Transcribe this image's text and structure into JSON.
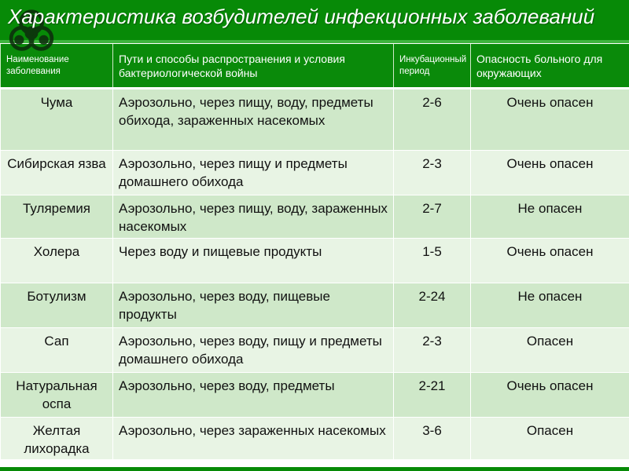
{
  "title": "Характеристика возбудителей инфекционных заболеваний",
  "icon": "biohazard-icon",
  "colors": {
    "header_green": "#0a8a0a",
    "row_odd": "#cfe8c9",
    "row_even": "#e8f4e4"
  },
  "table": {
    "headers": [
      "Наименование заболевания",
      "Пути и способы распространения и условия бактериологической войны",
      "Инкубационный период",
      "Опасность больного для окружающих"
    ],
    "rows": [
      {
        "name": "Чума",
        "spread": "Аэрозольно, через пищу, воду, предметы обихода, зараженных насекомых",
        "incubation": "2-6",
        "danger": "Очень опасен"
      },
      {
        "name": "Сибирская язва",
        "spread": "Аэрозольно, через пищу и предметы домашнего обихода",
        "incubation": "2-3",
        "danger": "Очень опасен"
      },
      {
        "name": "Туляремия",
        "spread": "Аэрозольно, через пищу, воду, зараженных насекомых",
        "incubation": "2-7",
        "danger": "Не опасен"
      },
      {
        "name": "Холера",
        "spread": "Через воду и пищевые продукты",
        "incubation": "1-5",
        "danger": "Очень опасен"
      },
      {
        "name": "Ботулизм",
        "spread": "Аэрозольно, через  воду, пищевые продукты",
        "incubation": "2-24",
        "danger": "Не опасен"
      },
      {
        "name": "Сап",
        "spread": "Аэрозольно, через воду, пищу и предметы домашнего обихода",
        "incubation": "2-3",
        "danger": "Опасен"
      },
      {
        "name": "Натуральная оспа",
        "spread": "Аэрозольно, через  воду, предметы",
        "incubation": "2-21",
        "danger": "Очень опасен"
      },
      {
        "name": "Желтая лихорадка",
        "spread": "Аэрозольно, через  зараженных насекомых",
        "incubation": "3-6",
        "danger": "Опасен"
      }
    ]
  }
}
